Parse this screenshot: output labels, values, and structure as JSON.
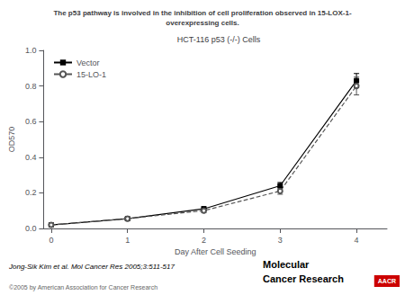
{
  "chart_data": {
    "type": "line",
    "title": "The p53 pathway is involved in the inhibition of cell proliferation observed in 15-LOX-1-\noverexpressing cells.",
    "subtitle": "HCT-116 p53 (-/-) Cells",
    "xlabel": "Day After Cell Seeding",
    "ylabel": "OD570",
    "x": [
      0,
      1,
      2,
      3,
      4
    ],
    "xlim": [
      -0.1,
      4.4
    ],
    "xticks": [
      0,
      1,
      2,
      3,
      4
    ],
    "ylim": [
      0,
      1
    ],
    "yticks": [
      {
        "value": 0,
        "label": "0.0"
      },
      0.2,
      0.4,
      0.6,
      0.8,
      {
        "value": 1,
        "label": "1.0"
      }
    ],
    "grid": false,
    "legend": "upper left",
    "series": [
      {
        "name": "Vector",
        "color": "#000000",
        "marker": "square",
        "line_style": "solid",
        "values": [
          0.02,
          0.055,
          0.11,
          0.24,
          0.83
        ],
        "errors": [
          0.003,
          0.008,
          0.012,
          0.018,
          0.04
        ]
      },
      {
        "name": "15-LO-1",
        "color": "#555555",
        "marker": "circle",
        "line_style": "dashed",
        "values": [
          0.02,
          0.055,
          0.1,
          0.21,
          0.8
        ],
        "errors": [
          0.003,
          0.008,
          0.012,
          0.018,
          0.05
        ]
      }
    ],
    "annotations": [
      "Jong-Sik Kim et al. Mol Cancer Res 2005;3:511-517",
      "©2005 by American Association for Cancer Research",
      "Molecular",
      "Cancer Research",
      "AACR"
    ]
  }
}
